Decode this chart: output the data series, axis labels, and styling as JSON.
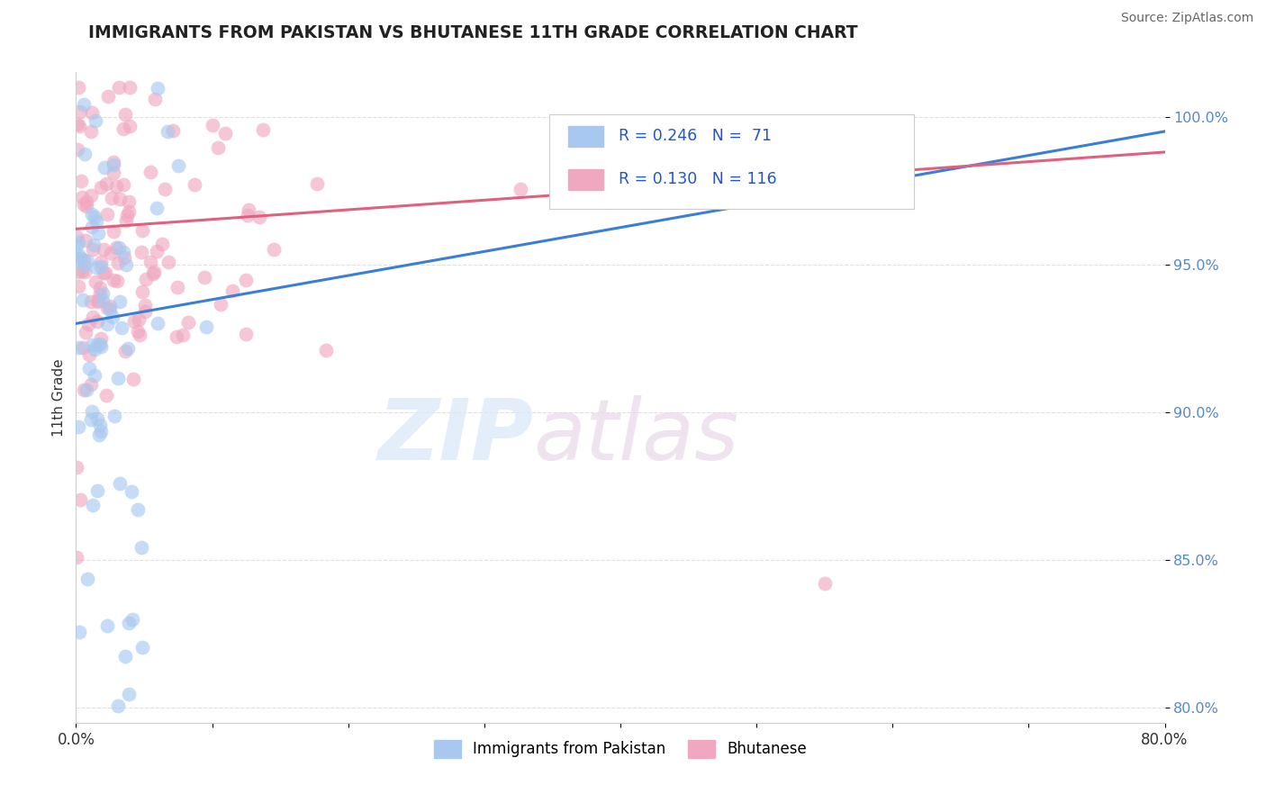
{
  "title": "IMMIGRANTS FROM PAKISTAN VS BHUTANESE 11TH GRADE CORRELATION CHART",
  "source": "Source: ZipAtlas.com",
  "ylabel": "11th Grade",
  "xlim": [
    0.0,
    80.0
  ],
  "ylim": [
    79.5,
    101.5
  ],
  "yticks": [
    80.0,
    85.0,
    90.0,
    95.0,
    100.0
  ],
  "ytick_labels": [
    "80.0%",
    "85.0%",
    "90.0%",
    "95.0%",
    "100.0%"
  ],
  "pakistan_color": "#a8c8f0",
  "bhutanese_color": "#f0a8c0",
  "pakistan_line_color": "#3a7fd5",
  "bhutanese_line_color": "#e06080",
  "R_pakistan": 0.246,
  "N_pakistan": 71,
  "R_bhutanese": 0.13,
  "N_bhutanese": 116,
  "legend_label_pakistan": "Immigrants from Pakistan",
  "legend_label_bhutanese": "Bhutanese",
  "watermark_zip": "ZIP",
  "watermark_atlas": "atlas",
  "background_color": "#ffffff"
}
